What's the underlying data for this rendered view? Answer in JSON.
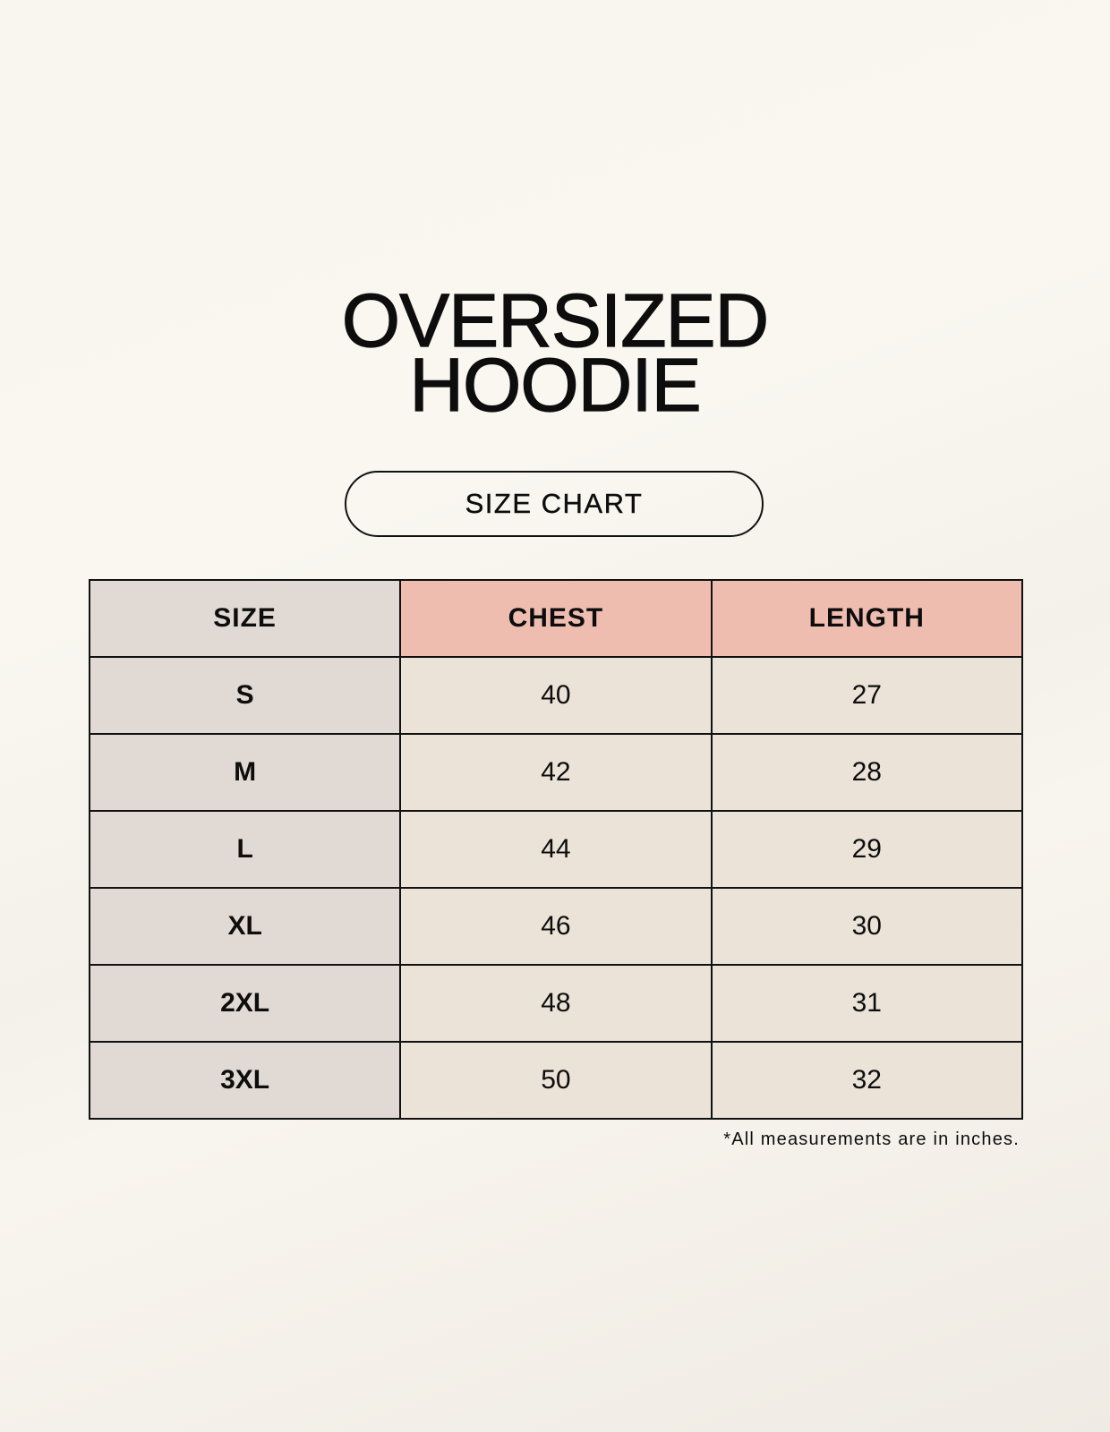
{
  "title": {
    "line1": "OVERSIZED",
    "line2": "HOODIE"
  },
  "subtitle": "SIZE CHART",
  "table": {
    "headers": [
      "SIZE",
      "CHEST",
      "LENGTH"
    ],
    "rows": [
      [
        "S",
        "40",
        "27"
      ],
      [
        "M",
        "42",
        "28"
      ],
      [
        "L",
        "44",
        "29"
      ],
      [
        "XL",
        "46",
        "30"
      ],
      [
        "2XL",
        "48",
        "31"
      ],
      [
        "3XL",
        "50",
        "32"
      ]
    ]
  },
  "footnote": "*All measurements are in inches.",
  "colors": {
    "size_column": "#e1d9d3",
    "header_accent": "#eebdb0",
    "cell": "#ebe3d8",
    "background": "#f9f6ef"
  }
}
